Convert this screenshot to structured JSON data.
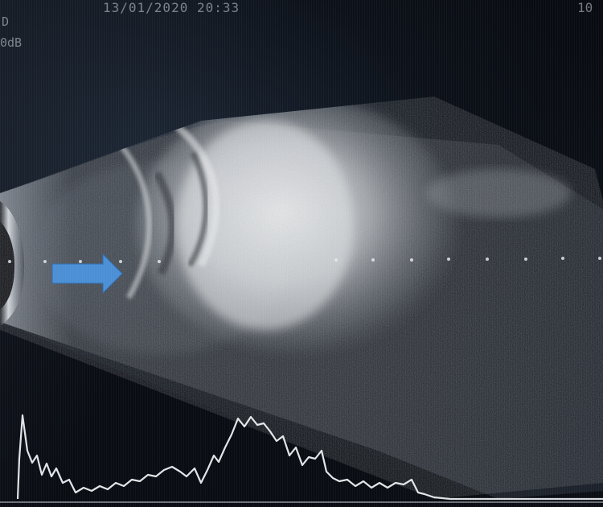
{
  "scan": {
    "timestamp": "13/01/2020 20:33",
    "corner_label": "10",
    "eye_label": "D",
    "gain_label": "0dB"
  },
  "colors": {
    "arrow": "#4a8fd6",
    "echo": "#e8ecef",
    "background": "#06080d"
  },
  "icons": {
    "pointer": "arrow-right-icon"
  }
}
